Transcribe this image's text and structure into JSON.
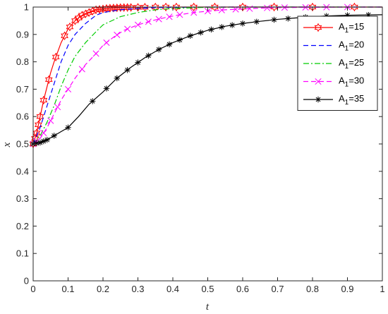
{
  "chart_data": {
    "type": "line",
    "xlabel": "t",
    "ylabel": "x",
    "xlim": [
      0,
      1
    ],
    "ylim": [
      0,
      1
    ],
    "x_ticks": [
      "0",
      "0.1",
      "0.2",
      "0.3",
      "0.4",
      "0.5",
      "0.6",
      "0.7",
      "0.8",
      "0.9",
      "1"
    ],
    "y_ticks": [
      "0",
      "0.1",
      "0.2",
      "0.3",
      "0.4",
      "0.5",
      "0.6",
      "0.7",
      "0.8",
      "0.9",
      "1"
    ],
    "grid": false,
    "legend_position": "top-right",
    "series": [
      {
        "name_main": "A",
        "name_sub": "1",
        "name_rest": "=15",
        "color": "#ff0000",
        "dash": "solid",
        "marker": "hexagram",
        "x": [
          0,
          0.01,
          0.02,
          0.03,
          0.04,
          0.05,
          0.06,
          0.08,
          0.1,
          0.12,
          0.14,
          0.16,
          0.18,
          0.2,
          0.22,
          0.25,
          0.3,
          0.35,
          0.4,
          0.5,
          0.6,
          0.8,
          1.0
        ],
        "y": [
          0.5,
          0.54,
          0.6,
          0.66,
          0.71,
          0.76,
          0.8,
          0.87,
          0.92,
          0.95,
          0.97,
          0.98,
          0.99,
          0.993,
          0.996,
          0.998,
          0.999,
          1.0,
          1.0,
          1.0,
          1.0,
          1.0,
          1.0
        ],
        "marker_x": [
          0,
          0.005,
          0.01,
          0.015,
          0.02,
          0.03,
          0.045,
          0.065,
          0.09,
          0.105,
          0.12,
          0.13,
          0.14,
          0.15,
          0.16,
          0.17,
          0.18,
          0.19,
          0.2,
          0.21,
          0.22,
          0.23,
          0.24,
          0.25,
          0.26,
          0.27,
          0.28,
          0.3,
          0.32,
          0.35,
          0.38,
          0.41,
          0.46,
          0.52,
          0.6,
          0.69,
          0.8,
          0.92
        ]
      },
      {
        "name_main": "A",
        "name_sub": "1",
        "name_rest": "=20",
        "color": "#0000ff",
        "dash": "dashed",
        "marker": "none",
        "x": [
          0,
          0.02,
          0.04,
          0.06,
          0.08,
          0.1,
          0.12,
          0.15,
          0.18,
          0.2,
          0.25,
          0.3,
          0.35,
          0.4,
          0.5,
          0.6,
          0.8,
          1.0
        ],
        "y": [
          0.5,
          0.56,
          0.64,
          0.72,
          0.8,
          0.86,
          0.9,
          0.94,
          0.97,
          0.98,
          0.99,
          0.995,
          0.998,
          0.999,
          1.0,
          1.0,
          1.0,
          1.0
        ]
      },
      {
        "name_main": "A",
        "name_sub": "1",
        "name_rest": "=25",
        "color": "#00cc00",
        "dash": "dashdot",
        "marker": "none",
        "x": [
          0,
          0.02,
          0.04,
          0.06,
          0.08,
          0.1,
          0.12,
          0.15,
          0.18,
          0.2,
          0.25,
          0.3,
          0.35,
          0.4,
          0.5,
          0.6,
          0.8,
          1.0
        ],
        "y": [
          0.5,
          0.53,
          0.58,
          0.64,
          0.71,
          0.77,
          0.82,
          0.87,
          0.91,
          0.935,
          0.965,
          0.98,
          0.99,
          0.995,
          0.999,
          1.0,
          1.0,
          1.0
        ]
      },
      {
        "name_main": "A",
        "name_sub": "1",
        "name_rest": "=30",
        "color": "#ff00ff",
        "dash": "dashed",
        "marker": "x",
        "x": [
          0,
          0.02,
          0.04,
          0.06,
          0.08,
          0.1,
          0.12,
          0.15,
          0.18,
          0.2,
          0.23,
          0.26,
          0.3,
          0.34,
          0.38,
          0.42,
          0.46,
          0.5,
          0.55,
          0.6,
          0.65,
          0.7,
          0.8,
          0.9,
          1.0
        ],
        "y": [
          0.5,
          0.52,
          0.56,
          0.61,
          0.66,
          0.7,
          0.74,
          0.79,
          0.83,
          0.86,
          0.89,
          0.915,
          0.935,
          0.95,
          0.962,
          0.972,
          0.98,
          0.985,
          0.99,
          0.993,
          0.996,
          0.998,
          0.999,
          1.0,
          1.0
        ],
        "marker_x": [
          0,
          0.01,
          0.03,
          0.05,
          0.07,
          0.1,
          0.14,
          0.18,
          0.21,
          0.24,
          0.27,
          0.3,
          0.33,
          0.36,
          0.39,
          0.42,
          0.46,
          0.5,
          0.54,
          0.58,
          0.62,
          0.67,
          0.72,
          0.78,
          0.84,
          0.9
        ]
      },
      {
        "name_main": "A",
        "name_sub": "1",
        "name_rest": "=35",
        "color": "#000000",
        "dash": "solid",
        "marker": "asterisk",
        "x": [
          0,
          0.02,
          0.04,
          0.06,
          0.08,
          0.1,
          0.13,
          0.16,
          0.2,
          0.24,
          0.28,
          0.32,
          0.36,
          0.4,
          0.45,
          0.5,
          0.55,
          0.6,
          0.65,
          0.7,
          0.75,
          0.8,
          0.85,
          0.9,
          0.95,
          1.0
        ],
        "y": [
          0.5,
          0.505,
          0.515,
          0.53,
          0.545,
          0.56,
          0.6,
          0.645,
          0.69,
          0.74,
          0.78,
          0.815,
          0.845,
          0.87,
          0.895,
          0.915,
          0.93,
          0.94,
          0.948,
          0.955,
          0.96,
          0.965,
          0.968,
          0.97,
          0.971,
          0.972
        ],
        "marker_x": [
          0,
          0.01,
          0.02,
          0.03,
          0.04,
          0.06,
          0.1,
          0.17,
          0.21,
          0.24,
          0.27,
          0.3,
          0.33,
          0.36,
          0.39,
          0.42,
          0.45,
          0.48,
          0.51,
          0.54,
          0.57,
          0.6,
          0.64,
          0.69,
          0.73,
          0.78,
          0.84,
          0.9,
          0.96
        ]
      }
    ]
  }
}
